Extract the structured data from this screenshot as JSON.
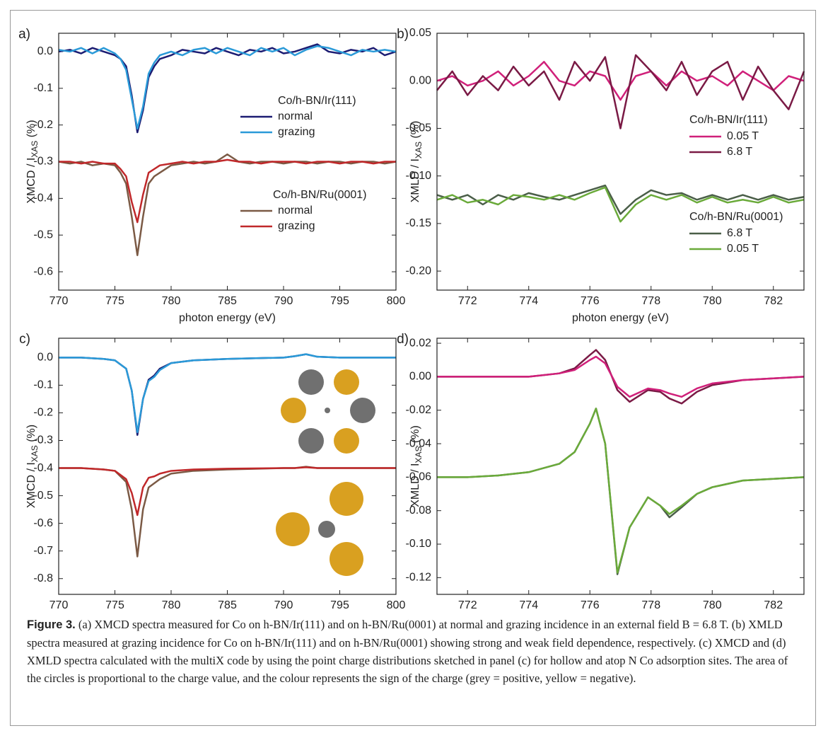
{
  "chart_data": [
    {
      "type": "line",
      "panel_label": "a)",
      "xlabel": "photon energy (eV)",
      "ylabel": {
        "main": "XMCD / I",
        "sub": "XAS",
        "tail": " (%)"
      },
      "xlim": [
        770,
        800
      ],
      "ylim": [
        -0.65,
        0.05
      ],
      "xticks": [
        770,
        775,
        780,
        785,
        790,
        795,
        800
      ],
      "yticks": [
        {
          "value": 0,
          "label": "0.0"
        },
        -0.1,
        -0.2,
        -0.3,
        -0.4,
        -0.5,
        -0.6
      ],
      "annotations": [
        "Co/h-BN/Ir(111)",
        "Co/h-BN/Ru(0001)"
      ],
      "x": [
        770,
        771,
        772,
        773,
        774,
        775,
        775.5,
        776,
        776.5,
        777,
        777.5,
        778,
        778.5,
        779,
        780,
        781,
        782,
        783,
        784,
        785,
        786,
        787,
        788,
        789,
        790,
        791,
        792,
        793,
        794,
        795,
        796,
        797,
        798,
        799,
        800
      ],
      "series": [
        {
          "name": "normal",
          "color": "#1c1c72",
          "values": [
            0.0,
            0.005,
            -0.005,
            0.01,
            0.0,
            -0.01,
            -0.02,
            -0.04,
            -0.12,
            -0.22,
            -0.16,
            -0.07,
            -0.04,
            -0.02,
            -0.01,
            0.005,
            0.0,
            -0.005,
            0.01,
            0.0,
            -0.01,
            0.005,
            0.0,
            0.01,
            -0.005,
            0.0,
            0.01,
            0.02,
            0.0,
            -0.005,
            0.005,
            0.0,
            0.01,
            -0.01,
            0.0
          ]
        },
        {
          "name": "grazing",
          "color": "#2a9ad8",
          "values": [
            0.005,
            0.0,
            0.01,
            -0.005,
            0.01,
            -0.005,
            -0.02,
            -0.05,
            -0.13,
            -0.21,
            -0.15,
            -0.06,
            -0.03,
            -0.01,
            0.0,
            -0.01,
            0.005,
            0.01,
            -0.005,
            0.01,
            0.0,
            -0.01,
            0.01,
            0.0,
            0.01,
            -0.01,
            0.005,
            0.015,
            0.01,
            0.0,
            -0.01,
            0.005,
            0.0,
            0.005,
            0.0
          ]
        },
        {
          "name": "normal",
          "color": "#7b5a45",
          "values": [
            -0.3,
            -0.305,
            -0.3,
            -0.31,
            -0.305,
            -0.31,
            -0.33,
            -0.36,
            -0.45,
            -0.555,
            -0.45,
            -0.36,
            -0.34,
            -0.33,
            -0.31,
            -0.305,
            -0.3,
            -0.305,
            -0.3,
            -0.28,
            -0.3,
            -0.305,
            -0.3,
            -0.3,
            -0.305,
            -0.3,
            -0.3,
            -0.305,
            -0.3,
            -0.3,
            -0.305,
            -0.3,
            -0.3,
            -0.305,
            -0.3
          ]
        },
        {
          "name": "grazing",
          "color": "#c0282a",
          "values": [
            -0.3,
            -0.3,
            -0.305,
            -0.3,
            -0.305,
            -0.305,
            -0.32,
            -0.34,
            -0.41,
            -0.465,
            -0.39,
            -0.33,
            -0.32,
            -0.31,
            -0.305,
            -0.3,
            -0.305,
            -0.3,
            -0.3,
            -0.295,
            -0.3,
            -0.3,
            -0.305,
            -0.3,
            -0.3,
            -0.3,
            -0.305,
            -0.3,
            -0.3,
            -0.305,
            -0.3,
            -0.3,
            -0.305,
            -0.3,
            -0.3
          ]
        }
      ]
    },
    {
      "type": "line",
      "panel_label": "b)",
      "xlabel": "photon energy (eV)",
      "ylabel": {
        "main": "XMLD / I",
        "sub": "XAS",
        "tail": " (%)"
      },
      "xlim": [
        771,
        783
      ],
      "ylim": [
        -0.22,
        0.05
      ],
      "xticks": [
        772,
        774,
        776,
        778,
        780,
        782
      ],
      "yticks": [
        0.05,
        {
          "value": 0,
          "label": "0.00"
        },
        -0.05,
        {
          "value": -0.1,
          "label": "-0.10"
        },
        -0.15,
        {
          "value": -0.2,
          "label": "-0.20"
        }
      ],
      "annotations": [
        "Co/h-BN/Ir(111)",
        "Co/h-BN/Ru(0001)"
      ],
      "x": [
        771,
        771.5,
        772,
        772.5,
        773,
        773.5,
        774,
        774.5,
        775,
        775.5,
        776,
        776.5,
        777,
        777.5,
        778,
        778.5,
        779,
        779.5,
        780,
        780.5,
        781,
        781.5,
        782,
        782.5,
        783
      ],
      "series": [
        {
          "name": "0.05 T",
          "color": "#d0207a",
          "values": [
            0.0,
            0.005,
            -0.005,
            0.0,
            0.01,
            -0.005,
            0.005,
            0.02,
            0.0,
            -0.005,
            0.01,
            0.005,
            -0.02,
            0.005,
            0.01,
            -0.005,
            0.01,
            0.0,
            0.005,
            -0.005,
            0.01,
            0.0,
            -0.01,
            0.005,
            0.0
          ]
        },
        {
          "name": "6.8 T",
          "color": "#7a1a45",
          "values": [
            -0.01,
            0.01,
            -0.015,
            0.005,
            -0.01,
            0.015,
            -0.005,
            0.01,
            -0.02,
            0.02,
            0.0,
            0.025,
            -0.05,
            0.027,
            0.01,
            -0.01,
            0.02,
            -0.015,
            0.01,
            0.02,
            -0.02,
            0.015,
            -0.01,
            -0.03,
            0.01
          ]
        },
        {
          "name": "6.8 T",
          "color": "#4a5e48",
          "values": [
            -0.12,
            -0.125,
            -0.12,
            -0.13,
            -0.12,
            -0.125,
            -0.118,
            -0.122,
            -0.125,
            -0.12,
            -0.115,
            -0.11,
            -0.14,
            -0.125,
            -0.115,
            -0.12,
            -0.118,
            -0.125,
            -0.12,
            -0.125,
            -0.12,
            -0.125,
            -0.12,
            -0.125,
            -0.122
          ]
        },
        {
          "name": "0.05 T",
          "color": "#6aaa3a",
          "values": [
            -0.125,
            -0.12,
            -0.128,
            -0.125,
            -0.13,
            -0.12,
            -0.122,
            -0.125,
            -0.12,
            -0.125,
            -0.118,
            -0.112,
            -0.148,
            -0.13,
            -0.12,
            -0.125,
            -0.12,
            -0.128,
            -0.122,
            -0.128,
            -0.125,
            -0.128,
            -0.122,
            -0.128,
            -0.125
          ]
        }
      ]
    },
    {
      "type": "line",
      "panel_label": "c)",
      "xlabel": "photon energy (eV)",
      "ylabel": {
        "main": "XMCD / I",
        "sub": "XAS",
        "tail": " (%)"
      },
      "xlim": [
        770,
        800
      ],
      "ylim": [
        -0.857,
        0.07
      ],
      "xticks": [
        770,
        775,
        780,
        785,
        790,
        795,
        800
      ],
      "yticks": [
        {
          "value": 0,
          "label": "0.0"
        },
        -0.1,
        -0.2,
        -0.3,
        -0.4,
        -0.5,
        -0.6,
        -0.7,
        -0.8
      ],
      "x": [
        770,
        772,
        774,
        775,
        776,
        776.5,
        777,
        777.5,
        778,
        778.5,
        779,
        780,
        782,
        785,
        790,
        791,
        792,
        793,
        795,
        800
      ],
      "series": [
        {
          "color": "#1c1c72",
          "values": [
            0,
            0,
            -0.005,
            -0.01,
            -0.04,
            -0.12,
            -0.28,
            -0.15,
            -0.08,
            -0.065,
            -0.04,
            -0.02,
            -0.01,
            -0.005,
            0,
            0.005,
            0.012,
            0.003,
            0,
            0
          ]
        },
        {
          "color": "#2a9ad8",
          "values": [
            0,
            0,
            -0.005,
            -0.01,
            -0.04,
            -0.12,
            -0.27,
            -0.15,
            -0.085,
            -0.07,
            -0.045,
            -0.02,
            -0.01,
            -0.005,
            0,
            0.005,
            0.012,
            0.003,
            0,
            0
          ]
        },
        {
          "color": "#7b5a45",
          "values": [
            -0.4,
            -0.4,
            -0.405,
            -0.41,
            -0.45,
            -0.55,
            -0.72,
            -0.55,
            -0.47,
            -0.455,
            -0.44,
            -0.42,
            -0.41,
            -0.405,
            -0.4,
            -0.4,
            -0.395,
            -0.4,
            -0.4,
            -0.4
          ]
        },
        {
          "color": "#c0282a",
          "values": [
            -0.4,
            -0.4,
            -0.405,
            -0.41,
            -0.44,
            -0.49,
            -0.57,
            -0.47,
            -0.435,
            -0.43,
            -0.42,
            -0.41,
            -0.405,
            -0.402,
            -0.4,
            -0.4,
            -0.397,
            -0.4,
            -0.4,
            -0.4
          ]
        }
      ]
    },
    {
      "type": "line",
      "panel_label": "d)",
      "xlabel": "photon energy (eV)",
      "ylabel": {
        "main": "XMLD / I",
        "sub": "XAS",
        "tail": " (%)"
      },
      "xlim": [
        771,
        783
      ],
      "ylim": [
        -0.13,
        0.023
      ],
      "xticks": [
        772,
        774,
        776,
        778,
        780,
        782
      ],
      "yticks": [
        0.02,
        {
          "value": 0,
          "label": "0.00"
        },
        -0.02,
        -0.04,
        -0.06,
        -0.08,
        {
          "value": -0.1,
          "label": "-0.10"
        },
        -0.12
      ],
      "x": [
        771,
        772,
        773,
        774,
        775,
        775.5,
        776,
        776.2,
        776.5,
        776.9,
        777.3,
        777.9,
        778.3,
        778.6,
        779,
        779.5,
        780,
        781,
        782,
        783
      ],
      "series": [
        {
          "color": "#7a1a45",
          "values": [
            0,
            0,
            0,
            0,
            0.002,
            0.005,
            0.013,
            0.016,
            0.01,
            -0.008,
            -0.015,
            -0.008,
            -0.009,
            -0.013,
            -0.016,
            -0.009,
            -0.005,
            -0.002,
            -0.001,
            0
          ]
        },
        {
          "color": "#d0207a",
          "values": [
            0,
            0,
            0,
            0,
            0.002,
            0.004,
            0.01,
            0.012,
            0.008,
            -0.006,
            -0.012,
            -0.007,
            -0.008,
            -0.01,
            -0.012,
            -0.007,
            -0.004,
            -0.002,
            -0.001,
            0
          ]
        },
        {
          "color": "#4a5e48",
          "values": [
            -0.06,
            -0.06,
            -0.059,
            -0.057,
            -0.052,
            -0.045,
            -0.028,
            -0.019,
            -0.04,
            -0.118,
            -0.09,
            -0.072,
            -0.077,
            -0.084,
            -0.078,
            -0.07,
            -0.066,
            -0.062,
            -0.061,
            -0.06
          ]
        },
        {
          "color": "#6aaa3a",
          "values": [
            -0.06,
            -0.06,
            -0.059,
            -0.057,
            -0.052,
            -0.045,
            -0.028,
            -0.019,
            -0.04,
            -0.117,
            -0.09,
            -0.072,
            -0.077,
            -0.082,
            -0.077,
            -0.07,
            -0.066,
            -0.062,
            -0.061,
            -0.06
          ]
        }
      ]
    }
  ],
  "caption": {
    "label": "Figure 3.",
    "text": " (a) XMCD spectra measured for Co on h-BN/Ir(111) and on h-BN/Ru(0001) at normal and grazing incidence in an external field B = 6.8 T. (b) XMLD spectra measured at grazing incidence for Co on h-BN/Ir(111) and on h-BN/Ru(0001) showing strong and weak field dependence, respectively. (c) XMCD and (d) XMLD spectra calculated with the multiX code by using the point charge distributions sketched in panel (c) for hollow and atop N Co adsorption sites. The area of the circles is proportional to the charge value, and the colour represents the sign of the charge (grey = positive, yellow = negative)."
  }
}
